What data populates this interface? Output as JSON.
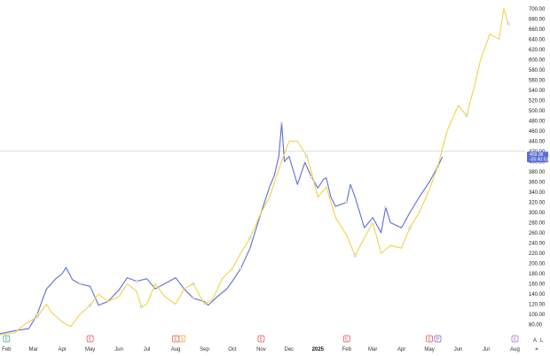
{
  "chart_data": {
    "type": "line",
    "title": "",
    "xlabel": "",
    "ylabel": "",
    "ylim": [
      60,
      710
    ],
    "y_ticks": [
      80,
      100,
      120,
      140,
      160,
      180,
      200,
      220,
      240,
      260,
      280,
      300,
      320,
      340,
      360,
      380,
      400,
      420,
      440,
      460,
      480,
      500,
      520,
      540,
      560,
      580,
      600,
      620,
      640,
      660,
      680,
      700
    ],
    "y_tick_labels": [
      "80.00",
      "100.00",
      "120.00",
      "140.00",
      "160.00",
      "180.00",
      "200.00",
      "220.00",
      "240.00",
      "260.00",
      "280.00",
      "300.00",
      "320.00",
      "340.00",
      "360.00",
      "380.00",
      "400.00",
      "420.00",
      "440.00",
      "460.00",
      "480.00",
      "500.00",
      "520.00",
      "540.00",
      "560.00",
      "580.00",
      "600.00",
      "620.00",
      "640.00",
      "660.00",
      "680.00",
      "700.00"
    ],
    "x_tick_labels": [
      "Feb",
      "Mar",
      "Apr",
      "May",
      "Jun",
      "Jul",
      "Aug",
      "Sep",
      "Oct",
      "Nov",
      "Dec",
      "2025",
      "Feb",
      "Mar",
      "Apr",
      "May",
      "Jun",
      "Jul",
      "Aug"
    ],
    "x_tick_dates": [
      "2024-02-01",
      "2024-03-01",
      "2024-04-01",
      "2024-05-01",
      "2024-06-01",
      "2024-07-01",
      "2024-08-01",
      "2024-09-01",
      "2024-10-01",
      "2024-11-01",
      "2024-12-01",
      "2025-01-01",
      "2025-02-01",
      "2025-03-01",
      "2025-04-01",
      "2025-05-01",
      "2025-06-01",
      "2025-07-01",
      "2025-08-01"
    ],
    "x_range": [
      "2024-01-25",
      "2025-08-12"
    ],
    "grid": false,
    "crosshair_price": 420,
    "series": [
      {
        "name": "",
        "color": "#5b6fd6",
        "points": [
          [
            "2024-01-25",
            62
          ],
          [
            "2024-02-10",
            68
          ],
          [
            "2024-02-25",
            72
          ],
          [
            "2024-03-05",
            100
          ],
          [
            "2024-03-15",
            150
          ],
          [
            "2024-03-25",
            170
          ],
          [
            "2024-04-01",
            180
          ],
          [
            "2024-04-05",
            192
          ],
          [
            "2024-04-12",
            168
          ],
          [
            "2024-04-20",
            160
          ],
          [
            "2024-05-01",
            155
          ],
          [
            "2024-05-10",
            118
          ],
          [
            "2024-05-20",
            125
          ],
          [
            "2024-06-01",
            148
          ],
          [
            "2024-06-10",
            172
          ],
          [
            "2024-06-20",
            165
          ],
          [
            "2024-07-01",
            170
          ],
          [
            "2024-07-10",
            150
          ],
          [
            "2024-07-20",
            160
          ],
          [
            "2024-08-01",
            172
          ],
          [
            "2024-08-10",
            150
          ],
          [
            "2024-08-20",
            132
          ],
          [
            "2024-09-01",
            125
          ],
          [
            "2024-09-05",
            118
          ],
          [
            "2024-09-15",
            135
          ],
          [
            "2024-09-25",
            150
          ],
          [
            "2024-10-01",
            165
          ],
          [
            "2024-10-10",
            190
          ],
          [
            "2024-10-20",
            230
          ],
          [
            "2024-11-01",
            300
          ],
          [
            "2024-11-10",
            350
          ],
          [
            "2024-11-15",
            372
          ],
          [
            "2024-11-20",
            410
          ],
          [
            "2024-11-23",
            475
          ],
          [
            "2024-11-26",
            400
          ],
          [
            "2024-12-01",
            410
          ],
          [
            "2024-12-05",
            385
          ],
          [
            "2024-12-10",
            355
          ],
          [
            "2024-12-18",
            398
          ],
          [
            "2024-12-25",
            370
          ],
          [
            "2025-01-01",
            348
          ],
          [
            "2025-01-07",
            365
          ],
          [
            "2025-01-10",
            368
          ],
          [
            "2025-01-15",
            330
          ],
          [
            "2025-01-20",
            312
          ],
          [
            "2025-02-01",
            320
          ],
          [
            "2025-02-05",
            355
          ],
          [
            "2025-02-10",
            330
          ],
          [
            "2025-02-20",
            270
          ],
          [
            "2025-03-01",
            290
          ],
          [
            "2025-03-10",
            260
          ],
          [
            "2025-03-15",
            310
          ],
          [
            "2025-03-20",
            280
          ],
          [
            "2025-04-01",
            270
          ],
          [
            "2025-04-10",
            300
          ],
          [
            "2025-04-20",
            330
          ],
          [
            "2025-05-01",
            360
          ],
          [
            "2025-05-10",
            390
          ],
          [
            "2025-05-15",
            409
          ]
        ]
      },
      {
        "name": "",
        "color": "#f2d24a",
        "points": [
          [
            "2024-01-25",
            60
          ],
          [
            "2024-02-10",
            64
          ],
          [
            "2024-02-20",
            80
          ],
          [
            "2024-03-05",
            95
          ],
          [
            "2024-03-15",
            120
          ],
          [
            "2024-03-20",
            105
          ],
          [
            "2024-04-01",
            85
          ],
          [
            "2024-04-10",
            76
          ],
          [
            "2024-04-20",
            100
          ],
          [
            "2024-05-01",
            118
          ],
          [
            "2024-05-10",
            140
          ],
          [
            "2024-05-20",
            125
          ],
          [
            "2024-06-01",
            135
          ],
          [
            "2024-06-10",
            160
          ],
          [
            "2024-06-20",
            145
          ],
          [
            "2024-06-25",
            115
          ],
          [
            "2024-07-01",
            120
          ],
          [
            "2024-07-10",
            160
          ],
          [
            "2024-07-20",
            135
          ],
          [
            "2024-08-01",
            120
          ],
          [
            "2024-08-10",
            150
          ],
          [
            "2024-08-20",
            160
          ],
          [
            "2024-09-01",
            120
          ],
          [
            "2024-09-10",
            130
          ],
          [
            "2024-09-20",
            170
          ],
          [
            "2024-10-01",
            190
          ],
          [
            "2024-10-10",
            220
          ],
          [
            "2024-10-20",
            250
          ],
          [
            "2024-11-01",
            300
          ],
          [
            "2024-11-10",
            330
          ],
          [
            "2024-11-20",
            385
          ],
          [
            "2024-12-01",
            440
          ],
          [
            "2024-12-10",
            440
          ],
          [
            "2024-12-20",
            410
          ],
          [
            "2024-12-25",
            380
          ],
          [
            "2025-01-01",
            330
          ],
          [
            "2025-01-10",
            350
          ],
          [
            "2025-01-20",
            290
          ],
          [
            "2025-02-01",
            255
          ],
          [
            "2025-02-10",
            215
          ],
          [
            "2025-02-20",
            250
          ],
          [
            "2025-03-01",
            280
          ],
          [
            "2025-03-10",
            220
          ],
          [
            "2025-03-20",
            235
          ],
          [
            "2025-04-01",
            230
          ],
          [
            "2025-04-10",
            270
          ],
          [
            "2025-04-20",
            300
          ],
          [
            "2025-05-01",
            345
          ],
          [
            "2025-05-10",
            390
          ],
          [
            "2025-05-20",
            460
          ],
          [
            "2025-06-01",
            510
          ],
          [
            "2025-06-10",
            490
          ],
          [
            "2025-06-20",
            560
          ],
          [
            "2025-06-25",
            600
          ],
          [
            "2025-07-05",
            650
          ],
          [
            "2025-07-15",
            640
          ],
          [
            "2025-07-20",
            700
          ],
          [
            "2025-07-25",
            670
          ]
        ]
      }
    ],
    "event_markers": [
      {
        "date": "2024-02-01",
        "label": "E",
        "color": "#2ca58d"
      },
      {
        "date": "2024-05-01",
        "label": "E",
        "color": "#e0474c"
      },
      {
        "date": "2024-08-01",
        "label": "E",
        "color": "#e0474c"
      },
      {
        "date": "2024-08-08",
        "label": "S",
        "color": "#e0a030"
      },
      {
        "date": "2024-11-01",
        "label": "E",
        "color": "#e0474c"
      },
      {
        "date": "2025-02-01",
        "label": "E",
        "color": "#e0474c"
      },
      {
        "date": "2025-05-01",
        "label": "E",
        "color": "#e0474c"
      },
      {
        "date": "2025-05-10",
        "label": "P",
        "color": "#7b4fd8"
      },
      {
        "date": "2025-08-01",
        "label": "E",
        "color": "#b65ad6"
      }
    ],
    "price_badge": {
      "line1": "409.38",
      "line2": "-05:40:53",
      "color": "#5b6fd6"
    },
    "corner_buttons": [
      "A",
      "L"
    ]
  }
}
